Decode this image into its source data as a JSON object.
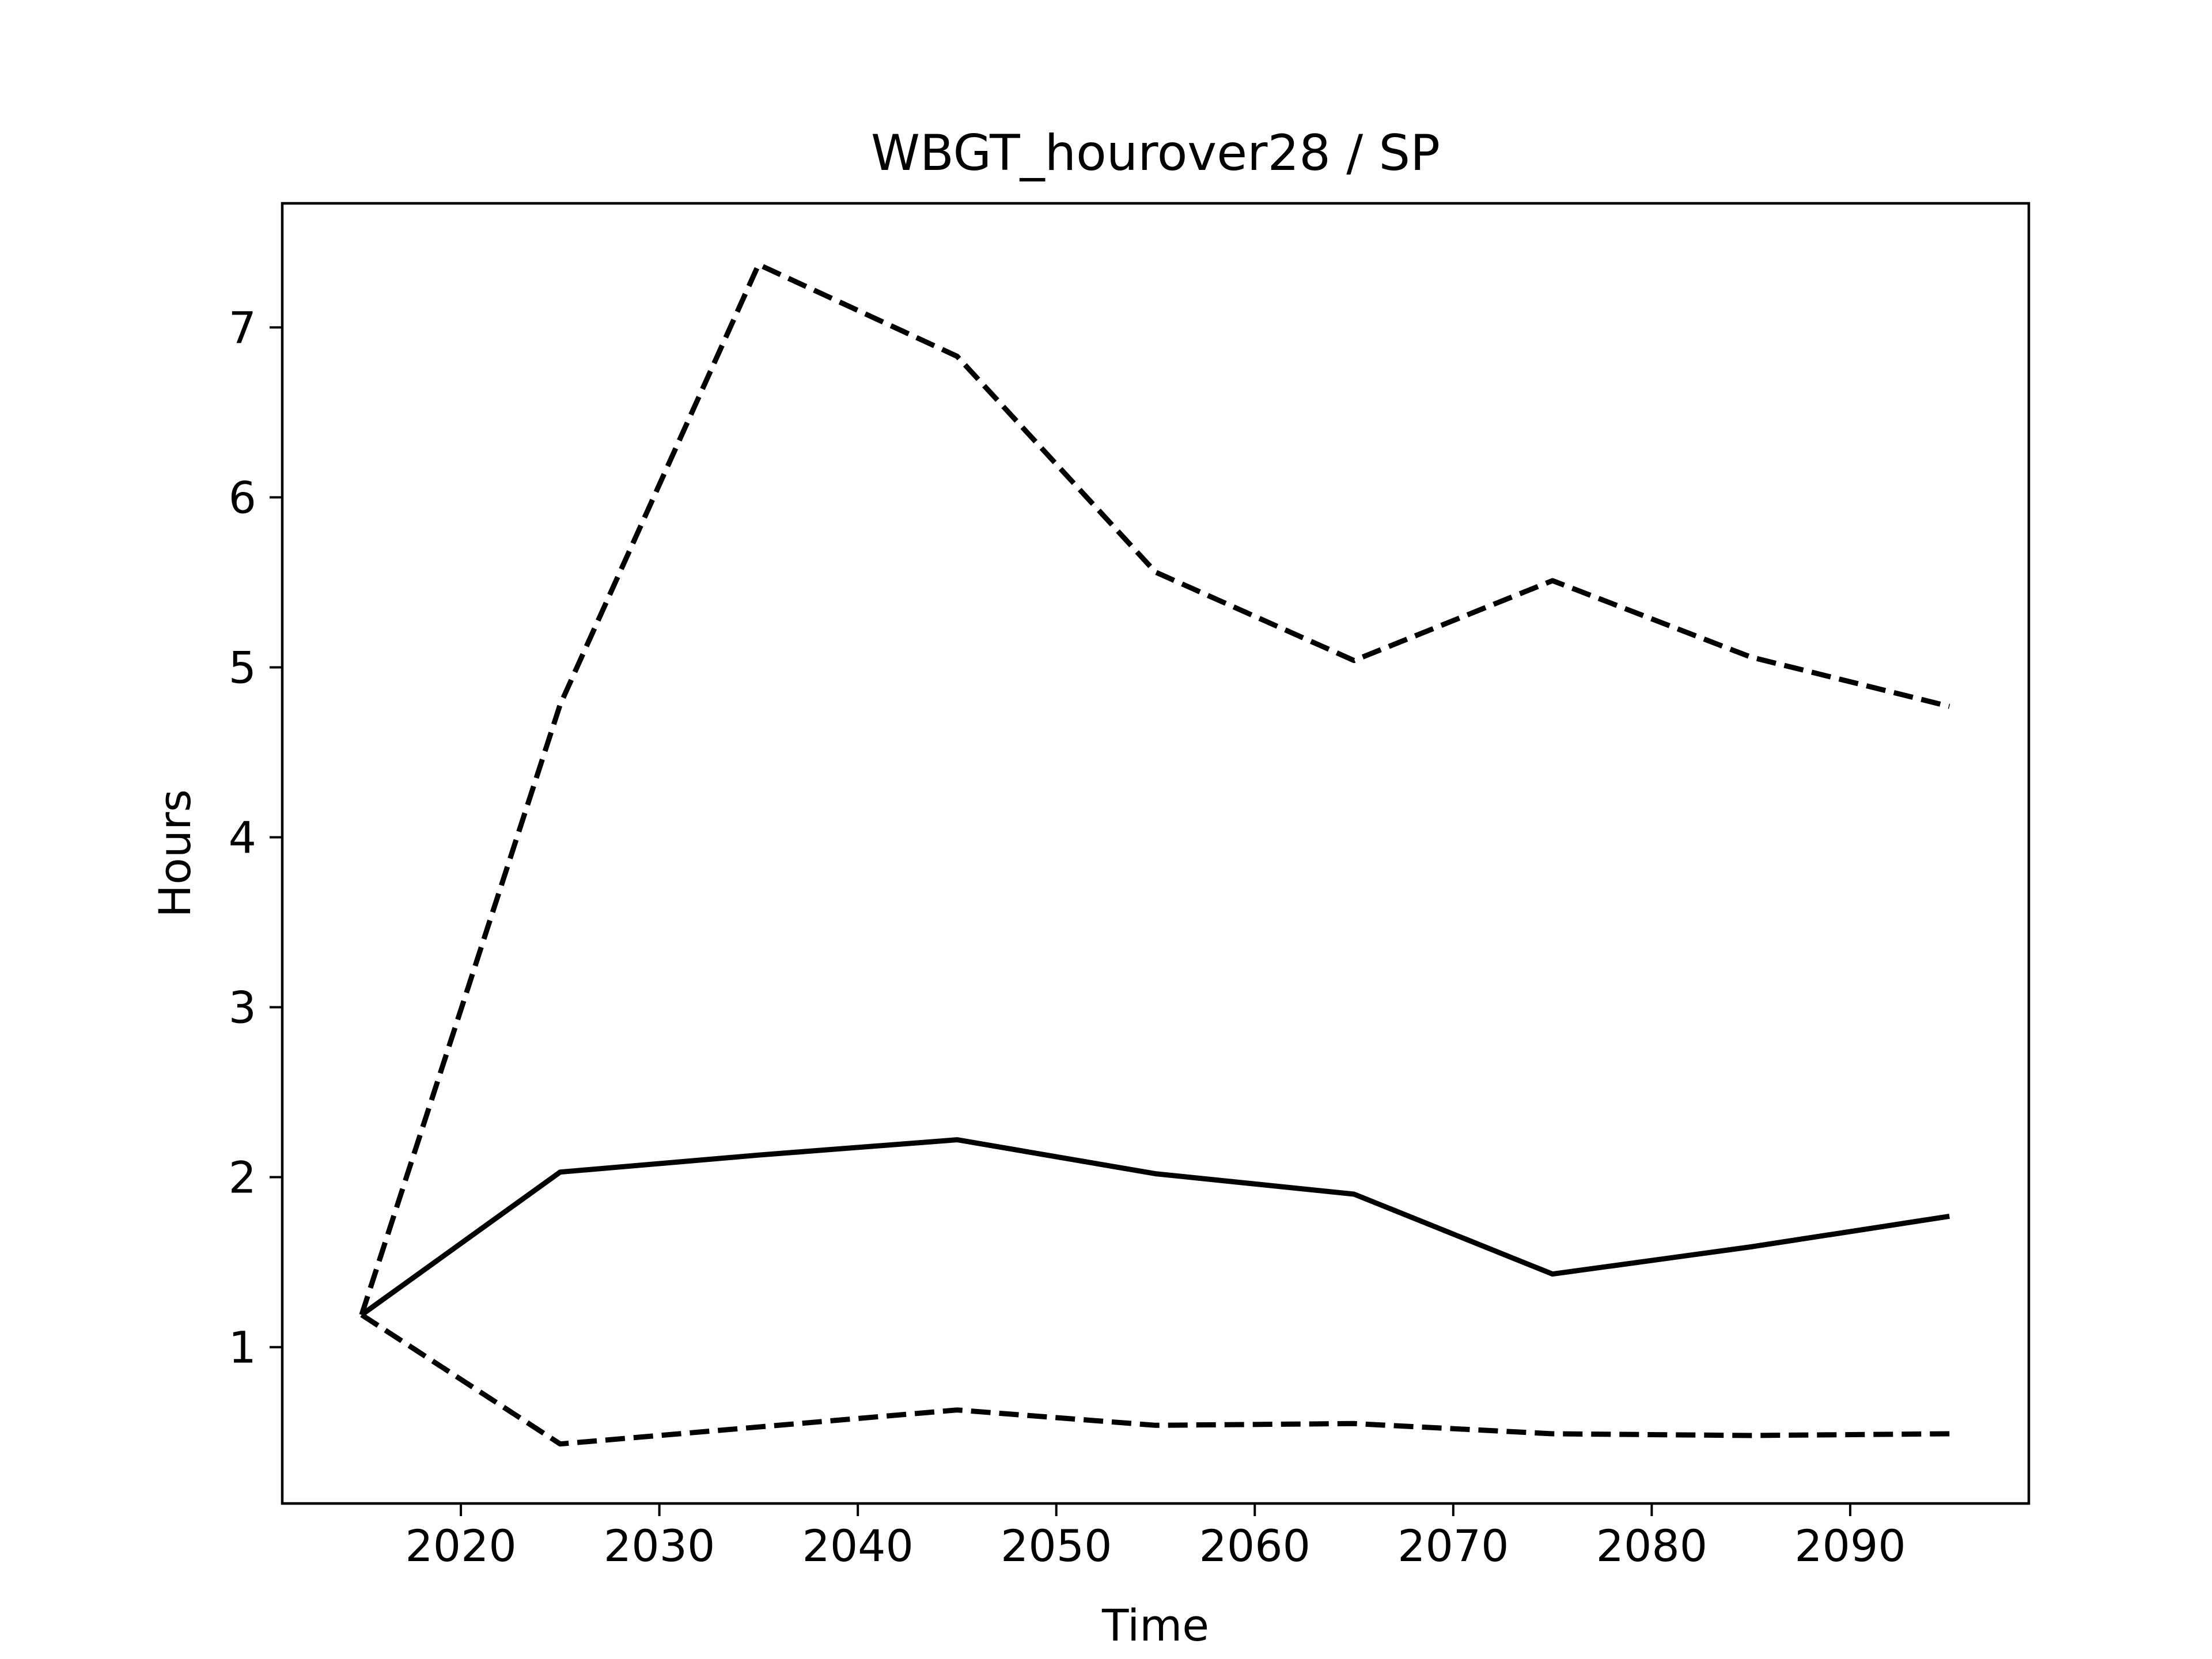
{
  "chart_data": {
    "type": "line",
    "title": "WBGT_hourover28 / SP",
    "xlabel": "Time",
    "ylabel": "Hours",
    "xlim": [
      2011,
      2099
    ],
    "ylim": [
      0.08,
      7.73
    ],
    "xticks": [
      2020,
      2030,
      2040,
      2050,
      2060,
      2070,
      2080,
      2090
    ],
    "yticks": [
      1,
      2,
      3,
      4,
      5,
      6,
      7
    ],
    "grid": false,
    "legend": "none",
    "colors": {
      "line": "#000000",
      "background": "#ffffff"
    },
    "series": [
      {
        "style": "solid",
        "x": [
          2015,
          2025,
          2035,
          2045,
          2055,
          2065,
          2075,
          2085,
          2095
        ],
        "y": [
          1.19,
          2.03,
          2.13,
          2.22,
          2.02,
          1.9,
          1.43,
          1.59,
          1.77
        ]
      },
      {
        "style": "dashed",
        "x": [
          2015,
          2025,
          2035,
          2045,
          2055,
          2065,
          2075,
          2085,
          2095
        ],
        "y": [
          1.19,
          4.78,
          7.37,
          6.83,
          5.56,
          5.04,
          5.51,
          5.06,
          4.77
        ]
      },
      {
        "style": "dashed",
        "x": [
          2015,
          2025,
          2035,
          2045,
          2055,
          2065,
          2075,
          2085,
          2095
        ],
        "y": [
          1.19,
          0.43,
          0.53,
          0.63,
          0.54,
          0.55,
          0.49,
          0.48,
          0.49
        ]
      }
    ]
  }
}
